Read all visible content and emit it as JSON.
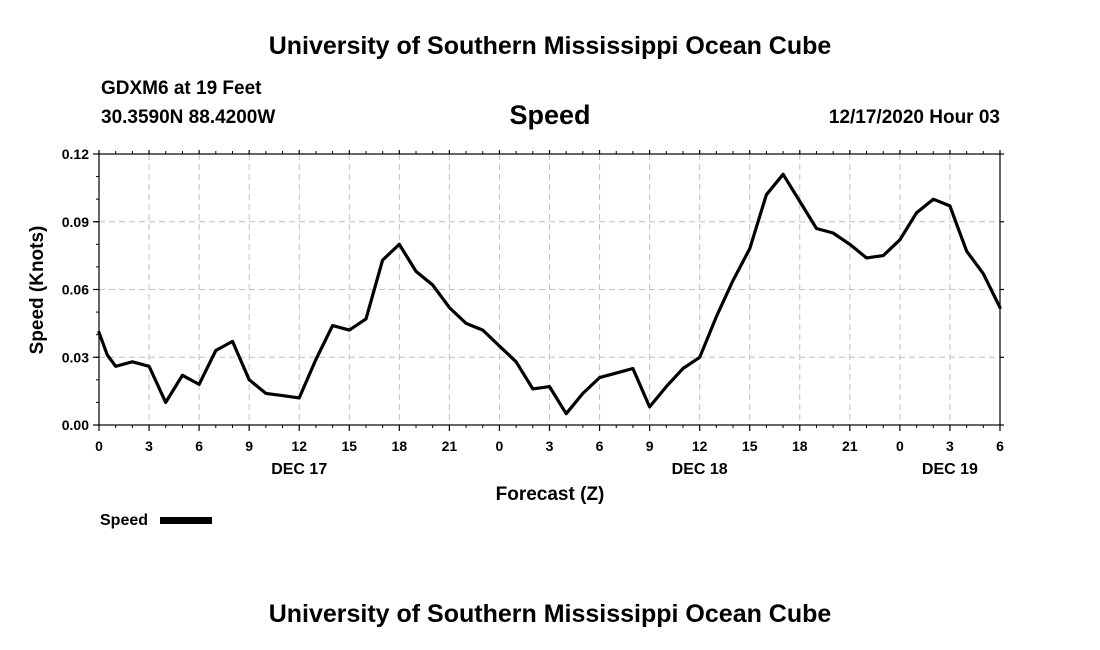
{
  "header": {
    "title": "University of Southern Mississippi Ocean Cube",
    "station": "GDXM6 at 19 Feet",
    "coords": "30.3590N 88.4200W",
    "variable": "Speed",
    "datetime": "12/17/2020 Hour 03"
  },
  "footer": {
    "title": "University of Southern Mississippi Ocean Cube"
  },
  "legend": {
    "label": "Speed"
  },
  "colors": {
    "line": "#000000",
    "grid": "#c0c0c0",
    "background": "#ffffff"
  },
  "chart_data": {
    "type": "line",
    "title": "Speed",
    "xlabel": "Forecast (Z)",
    "ylabel": "Speed (Knots)",
    "xlim": [
      0,
      54
    ],
    "ylim": [
      0,
      0.12
    ],
    "x_unit": "forecast hour",
    "x_tick_values": [
      0,
      3,
      6,
      9,
      12,
      15,
      18,
      21,
      24,
      27,
      30,
      33,
      36,
      39,
      42,
      45,
      48,
      51,
      54
    ],
    "x_tick_labels": [
      "0",
      "3",
      "6",
      "9",
      "12",
      "15",
      "18",
      "21",
      "0",
      "3",
      "6",
      "9",
      "12",
      "15",
      "18",
      "21",
      "0",
      "3",
      "6"
    ],
    "y_tick_values": [
      0,
      0.03,
      0.06,
      0.09,
      0.12
    ],
    "y_tick_labels": [
      "0.00",
      "0.03",
      "0.06",
      "0.09",
      "0.12"
    ],
    "day_labels": [
      {
        "x": 12,
        "label": "DEC 17"
      },
      {
        "x": 36,
        "label": "DEC 18"
      },
      {
        "x": 51,
        "label": "DEC 19"
      }
    ],
    "grid": true,
    "legend_position": "bottom-left",
    "series": [
      {
        "name": "Speed",
        "x": [
          0,
          0.5,
          1,
          2,
          3,
          4,
          5,
          6,
          7,
          8,
          9,
          10,
          11,
          12,
          13,
          14,
          15,
          16,
          17,
          18,
          19,
          20,
          21,
          22,
          23,
          24,
          25,
          26,
          27,
          28,
          29,
          30,
          31,
          32,
          33,
          34,
          35,
          36,
          37,
          38,
          39,
          40,
          41,
          42,
          43,
          44,
          45,
          46,
          47,
          48,
          49,
          50,
          51,
          52,
          53,
          54
        ],
        "values": [
          0.041,
          0.031,
          0.026,
          0.028,
          0.026,
          0.01,
          0.022,
          0.018,
          0.033,
          0.037,
          0.02,
          0.014,
          0.013,
          0.012,
          0.029,
          0.044,
          0.042,
          0.047,
          0.073,
          0.08,
          0.068,
          0.062,
          0.052,
          0.045,
          0.042,
          0.035,
          0.028,
          0.016,
          0.017,
          0.005,
          0.014,
          0.021,
          0.023,
          0.025,
          0.008,
          0.017,
          0.025,
          0.03,
          0.048,
          0.064,
          0.078,
          0.102,
          0.111,
          0.099,
          0.087,
          0.085,
          0.08,
          0.074,
          0.075,
          0.082,
          0.094,
          0.1,
          0.097,
          0.077,
          0.067,
          0.052
        ]
      }
    ]
  }
}
